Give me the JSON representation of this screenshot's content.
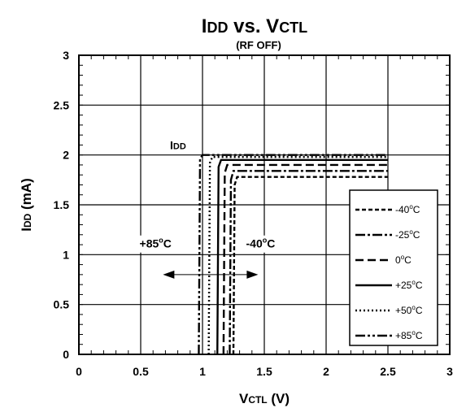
{
  "chart_data": {
    "type": "line",
    "title": "IDD vs. VCTL",
    "title_parts": {
      "i": "I",
      "dd": "DD",
      "vs": " vs. ",
      "v": "V",
      "ctl": "CTL"
    },
    "subtitle": "(RF OFF)",
    "xlabel": "VCTL (V)",
    "xlabel_parts": {
      "v": "V",
      "ctl": "CTL",
      "unit": " (V)"
    },
    "ylabel": "IDD (mA)",
    "ylabel_parts": {
      "i": "I",
      "dd": "DD",
      "unit": " (mA)"
    },
    "xlim": [
      0,
      3
    ],
    "ylim": [
      0,
      3
    ],
    "xticks": [
      0,
      0.5,
      1,
      1.5,
      2,
      2.5,
      3
    ],
    "xtick_labels": [
      "0",
      "0.5",
      "1",
      "1.5",
      "2",
      "2.5",
      "3"
    ],
    "yticks": [
      0,
      0.5,
      1,
      1.5,
      2,
      2.5,
      3
    ],
    "ytick_labels": [
      "0",
      "0.5",
      "1",
      "1.5",
      "2",
      "2.5",
      "3"
    ],
    "grid": true,
    "legend_position": "bottom-right",
    "series": [
      {
        "name": "-40°C",
        "label_parts": [
          "-40",
          "o",
          "C"
        ],
        "dash": "short-dash",
        "x": [
          1.25,
          1.26,
          1.28,
          2.5
        ],
        "y": [
          0,
          1.7,
          1.78,
          1.78
        ]
      },
      {
        "name": "-25°C",
        "label_parts": [
          "-25",
          "o",
          "C"
        ],
        "dash": "dash-dot",
        "x": [
          1.22,
          1.23,
          1.25,
          2.5
        ],
        "y": [
          0,
          1.75,
          1.84,
          1.84
        ]
      },
      {
        "name": "0°C",
        "label_parts": [
          "0",
          "o",
          "C"
        ],
        "dash": "long-dash",
        "x": [
          1.17,
          1.18,
          1.2,
          2.5
        ],
        "y": [
          0,
          1.82,
          1.9,
          1.9
        ]
      },
      {
        "name": "+25°C",
        "label_parts": [
          "+25",
          "o",
          "C"
        ],
        "dash": "solid",
        "x": [
          1.12,
          1.13,
          1.15,
          2.5
        ],
        "y": [
          0,
          1.88,
          1.95,
          1.95
        ]
      },
      {
        "name": "+50°C",
        "label_parts": [
          "+50",
          "o",
          "C"
        ],
        "dash": "dotted",
        "x": [
          1.05,
          1.06,
          1.08,
          2.5
        ],
        "y": [
          0,
          1.92,
          1.98,
          1.98
        ]
      },
      {
        "name": "+85°C",
        "label_parts": [
          "+85",
          "o",
          "C"
        ],
        "dash": "dash-dot-dot",
        "x": [
          0.97,
          0.98,
          1.0,
          2.5
        ],
        "y": [
          0,
          1.96,
          2.0,
          2.0
        ]
      }
    ],
    "annotations": {
      "idd_label": {
        "i": "I",
        "dd": "DD",
        "x": 1.0,
        "y": 2.1
      },
      "hot_label": {
        "parts": [
          "+85",
          "o",
          "C"
        ],
        "x": 0.62,
        "y": 1.07
      },
      "cold_label": {
        "parts": [
          "-40",
          "o",
          "C"
        ],
        "x": 1.47,
        "y": 1.07
      },
      "arrow": {
        "x_from": 0.68,
        "x_to": 1.45,
        "y": 0.8
      }
    }
  }
}
